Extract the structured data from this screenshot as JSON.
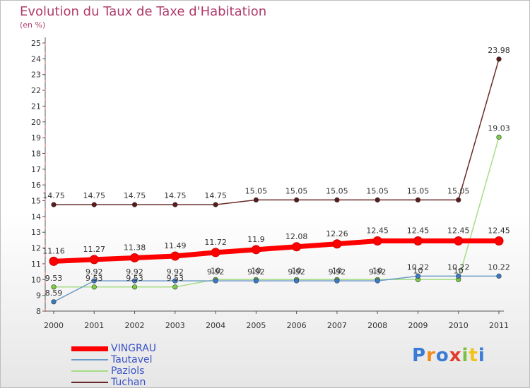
{
  "header": {
    "title": "Evolution du Taux de Taxe d'Habitation",
    "unit": "(en %)"
  },
  "legend": {
    "items": [
      {
        "label": "VINGRAU"
      },
      {
        "label": "Tautavel"
      },
      {
        "label": "Paziols"
      },
      {
        "label": "Tuchan"
      }
    ]
  },
  "logo": {
    "text": "Proxiti"
  },
  "chart_data": {
    "type": "line",
    "title": "Evolution du Taux de Taxe d'Habitation",
    "ylabel": "(en %)",
    "xlabel": "",
    "categories": [
      "2000",
      "2001",
      "2002",
      "2003",
      "2004",
      "2005",
      "2006",
      "2007",
      "2008",
      "2009",
      "2010",
      "2011"
    ],
    "ylim": [
      8,
      25
    ],
    "yticks": [
      8,
      9,
      10,
      11,
      12,
      13,
      14,
      15,
      16,
      17,
      18,
      19,
      20,
      21,
      22,
      23,
      24,
      25
    ],
    "grid": false,
    "legend_position": "bottom-left",
    "series": [
      {
        "name": "VINGRAU",
        "color": "#ff0000",
        "values": [
          11.16,
          11.27,
          11.38,
          11.49,
          11.72,
          11.9,
          12.08,
          12.26,
          12.45,
          12.45,
          12.45,
          12.45
        ],
        "labels": [
          "11.16",
          "11.27",
          "11.38",
          "11.49",
          "11.72",
          "11.9",
          "12.08",
          "12.26",
          "12.45",
          "12.45",
          "12.45",
          "12.45"
        ]
      },
      {
        "name": "Tautavel",
        "color": "#6d9cc8",
        "marker": "#3a7bc8",
        "values": [
          8.59,
          9.92,
          9.92,
          9.92,
          9.92,
          9.92,
          9.92,
          9.92,
          9.92,
          10.22,
          10.22,
          10.22
        ],
        "labels": [
          "8.59",
          "9.92",
          "9.92",
          "9.92",
          "9.92",
          "9.92",
          "9.92",
          "9.92",
          "9.92",
          "10.22",
          "10.22",
          "10.22"
        ]
      },
      {
        "name": "Paziols",
        "color": "#a6dd86",
        "marker": "#7ccc44",
        "values": [
          9.53,
          9.53,
          9.53,
          9.53,
          10,
          10,
          10,
          10,
          10,
          10,
          10,
          19.03
        ],
        "labels": [
          "9.53",
          "9.53",
          "9.53",
          "9.53",
          "10",
          "10",
          "10",
          "10",
          "10",
          "10",
          "10",
          "19.03"
        ]
      },
      {
        "name": "Tuchan",
        "color": "#6b2a2a",
        "marker": "#5a1a1a",
        "values": [
          14.75,
          14.75,
          14.75,
          14.75,
          14.75,
          15.05,
          15.05,
          15.05,
          15.05,
          15.05,
          15.05,
          23.98
        ],
        "labels": [
          "14.75",
          "14.75",
          "14.75",
          "14.75",
          "14.75",
          "15.05",
          "15.05",
          "15.05",
          "15.05",
          "15.05",
          "15.05",
          "23.98"
        ]
      }
    ]
  }
}
